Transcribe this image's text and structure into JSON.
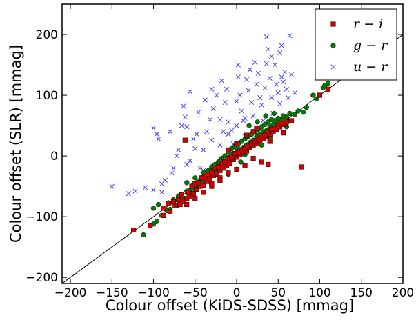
{
  "chart_data": {
    "type": "scatter",
    "title": "",
    "xlabel": "Colour offset (KiDS-SDSS)   [mmag]",
    "ylabel": "Colour offset (SLR)   [mmag]",
    "xlim": [
      -210,
      200
    ],
    "ylim": [
      -210,
      250
    ],
    "xticks": [
      "−200",
      "−150",
      "−100",
      "−50",
      "0",
      "50",
      "100",
      "150",
      "200"
    ],
    "yticks": [
      "−200",
      "−100",
      "0",
      "100",
      "200"
    ],
    "xtick_values": [
      -200,
      -150,
      -100,
      -50,
      0,
      50,
      100,
      150,
      200
    ],
    "ytick_values": [
      -200,
      -100,
      0,
      100,
      200
    ],
    "reference_line": {
      "label": "",
      "slope": 1,
      "intercept": 0
    },
    "legend": {
      "position": "top-right"
    },
    "grid": false,
    "series": [
      {
        "name": "r − i",
        "marker": "square",
        "color": "#d40000",
        "points": [
          [
            -124,
            -122
          ],
          [
            -104,
            -115
          ],
          [
            -88,
            -98
          ],
          [
            -80,
            -92
          ],
          [
            -74,
            -82
          ],
          [
            -68,
            -80
          ],
          [
            -64,
            -74
          ],
          [
            -60,
            -70
          ],
          [
            -56,
            -66
          ],
          [
            -52,
            -62
          ],
          [
            -48,
            -55
          ],
          [
            -44,
            -50
          ],
          [
            -40,
            -48
          ],
          [
            -36,
            -42
          ],
          [
            -32,
            -38
          ],
          [
            -28,
            -32
          ],
          [
            -24,
            -30
          ],
          [
            -20,
            -24
          ],
          [
            -16,
            -20
          ],
          [
            -12,
            -16
          ],
          [
            -8,
            -12
          ],
          [
            -4,
            -6
          ],
          [
            0,
            -2
          ],
          [
            4,
            2
          ],
          [
            8,
            6
          ],
          [
            12,
            8
          ],
          [
            16,
            14
          ],
          [
            20,
            18
          ],
          [
            24,
            20
          ],
          [
            28,
            26
          ],
          [
            32,
            28
          ],
          [
            36,
            32
          ],
          [
            40,
            36
          ],
          [
            44,
            40
          ],
          [
            48,
            44
          ],
          [
            52,
            48
          ],
          [
            58,
            52
          ],
          [
            64,
            58
          ],
          [
            -62,
            26
          ],
          [
            -88,
            -86
          ],
          [
            -82,
            -78
          ],
          [
            -76,
            -76
          ],
          [
            -70,
            -72
          ],
          [
            -66,
            -64
          ],
          [
            -58,
            -60
          ],
          [
            -54,
            -50
          ],
          [
            -50,
            -46
          ],
          [
            -46,
            -44
          ],
          [
            -42,
            -36
          ],
          [
            -38,
            -34
          ],
          [
            -34,
            -30
          ],
          [
            -30,
            -26
          ],
          [
            -26,
            -20
          ],
          [
            -22,
            -18
          ],
          [
            -18,
            -12
          ],
          [
            -14,
            -10
          ],
          [
            -10,
            -4
          ],
          [
            -6,
            -2
          ],
          [
            -2,
            4
          ],
          [
            2,
            6
          ],
          [
            6,
            10
          ],
          [
            10,
            12
          ],
          [
            14,
            16
          ],
          [
            18,
            20
          ],
          [
            22,
            24
          ],
          [
            26,
            28
          ],
          [
            30,
            32
          ],
          [
            34,
            34
          ],
          [
            38,
            40
          ],
          [
            42,
            44
          ],
          [
            46,
            46
          ],
          [
            50,
            50
          ],
          [
            54,
            54
          ],
          [
            60,
            56
          ],
          [
            30,
            -10
          ],
          [
            38,
            -14
          ],
          [
            -40,
            -60
          ],
          [
            -20,
            -36
          ],
          [
            0,
            -22
          ],
          [
            20,
            -4
          ],
          [
            10,
            -16
          ],
          [
            -30,
            -50
          ],
          [
            -10,
            -28
          ],
          [
            100,
            100
          ],
          [
            110,
            110
          ],
          [
            -60,
            -80
          ],
          [
            -50,
            -70
          ],
          [
            -30,
            -46
          ],
          [
            -20,
            -40
          ],
          [
            40,
            24
          ],
          [
            56,
            38
          ],
          [
            66,
            58
          ],
          [
            20,
            40
          ],
          [
            0,
            20
          ],
          [
            -10,
            10
          ],
          [
            24,
            46
          ],
          [
            12,
            34
          ],
          [
            78,
            -18
          ]
        ]
      },
      {
        "name": "g − r",
        "marker": "circle",
        "color": "#007a00",
        "points": [
          [
            -112,
            -130
          ],
          [
            -96,
            -108
          ],
          [
            -80,
            -88
          ],
          [
            -76,
            -72
          ],
          [
            -70,
            -66
          ],
          [
            -64,
            -70
          ],
          [
            -60,
            -58
          ],
          [
            -56,
            -56
          ],
          [
            -52,
            -48
          ],
          [
            -48,
            -50
          ],
          [
            -44,
            -40
          ],
          [
            -40,
            -42
          ],
          [
            -36,
            -34
          ],
          [
            -32,
            -30
          ],
          [
            -28,
            -22
          ],
          [
            -24,
            -26
          ],
          [
            -20,
            -16
          ],
          [
            -16,
            -12
          ],
          [
            -12,
            -8
          ],
          [
            -8,
            -2
          ],
          [
            -4,
            4
          ],
          [
            0,
            6
          ],
          [
            4,
            10
          ],
          [
            8,
            14
          ],
          [
            12,
            18
          ],
          [
            16,
            22
          ],
          [
            20,
            26
          ],
          [
            24,
            32
          ],
          [
            28,
            36
          ],
          [
            32,
            40
          ],
          [
            36,
            42
          ],
          [
            40,
            48
          ],
          [
            44,
            52
          ],
          [
            48,
            56
          ],
          [
            54,
            60
          ],
          [
            60,
            64
          ],
          [
            70,
            68
          ],
          [
            80,
            72
          ],
          [
            92,
            100
          ],
          [
            104,
            112
          ],
          [
            106,
            116
          ],
          [
            110,
            120
          ],
          [
            -100,
            -86
          ],
          [
            -94,
            -80
          ],
          [
            -84,
            -90
          ],
          [
            -72,
            -82
          ],
          [
            -66,
            -76
          ],
          [
            -58,
            -62
          ],
          [
            -50,
            -56
          ],
          [
            -46,
            -44
          ],
          [
            -42,
            -36
          ],
          [
            -38,
            -28
          ],
          [
            -34,
            -24
          ],
          [
            -30,
            -18
          ],
          [
            -26,
            -14
          ],
          [
            -22,
            -10
          ],
          [
            -18,
            -4
          ],
          [
            -14,
            0
          ],
          [
            -10,
            6
          ],
          [
            -6,
            12
          ],
          [
            -2,
            16
          ],
          [
            2,
            20
          ],
          [
            6,
            24
          ],
          [
            10,
            28
          ],
          [
            14,
            32
          ],
          [
            18,
            36
          ],
          [
            22,
            40
          ],
          [
            26,
            44
          ],
          [
            30,
            48
          ],
          [
            34,
            52
          ],
          [
            38,
            56
          ],
          [
            42,
            60
          ],
          [
            46,
            58
          ],
          [
            50,
            62
          ],
          [
            56,
            66
          ],
          [
            64,
            70
          ],
          [
            74,
            74
          ],
          [
            84,
            80
          ],
          [
            96,
            94
          ],
          [
            -40,
            -28
          ],
          [
            -20,
            -8
          ],
          [
            0,
            14
          ],
          [
            20,
            40
          ],
          [
            10,
            2
          ],
          [
            -30,
            -46
          ],
          [
            -10,
            -30
          ],
          [
            30,
            18
          ],
          [
            40,
            30
          ],
          [
            -50,
            -36
          ],
          [
            -60,
            -44
          ],
          [
            -20,
            -38
          ],
          [
            5,
            -10
          ],
          [
            15,
            50
          ],
          [
            25,
            56
          ],
          [
            35,
            66
          ],
          [
            45,
            70
          ],
          [
            60,
            48
          ],
          [
            -90,
            -98
          ],
          [
            -100,
            -112
          ]
        ]
      },
      {
        "name": "u − r",
        "marker": "x",
        "color": "#4040ff",
        "points": [
          [
            -150,
            -50
          ],
          [
            -130,
            -62
          ],
          [
            -122,
            -58
          ],
          [
            -100,
            46
          ],
          [
            -96,
            36
          ],
          [
            -94,
            28
          ],
          [
            -90,
            -46
          ],
          [
            -86,
            -40
          ],
          [
            -80,
            40
          ],
          [
            -78,
            -28
          ],
          [
            -76,
            -20
          ],
          [
            -72,
            0
          ],
          [
            -70,
            10
          ],
          [
            -66,
            50
          ],
          [
            -62,
            64
          ],
          [
            -60,
            48
          ],
          [
            -56,
            -8
          ],
          [
            -52,
            28
          ],
          [
            -48,
            36
          ],
          [
            -46,
            72
          ],
          [
            -44,
            -20
          ],
          [
            -40,
            10
          ],
          [
            -36,
            40
          ],
          [
            -32,
            60
          ],
          [
            -30,
            110
          ],
          [
            -28,
            78
          ],
          [
            -24,
            100
          ],
          [
            -20,
            60
          ],
          [
            -16,
            40
          ],
          [
            -14,
            88
          ],
          [
            -12,
            110
          ],
          [
            -10,
            56
          ],
          [
            -6,
            42
          ],
          [
            -4,
            20
          ],
          [
            0,
            90
          ],
          [
            2,
            150
          ],
          [
            4,
            100
          ],
          [
            6,
            74
          ],
          [
            8,
            58
          ],
          [
            10,
            32
          ],
          [
            12,
            126
          ],
          [
            14,
            108
          ],
          [
            16,
            142
          ],
          [
            18,
            88
          ],
          [
            20,
            66
          ],
          [
            22,
            40
          ],
          [
            24,
            118
          ],
          [
            26,
            136
          ],
          [
            28,
            96
          ],
          [
            30,
            84
          ],
          [
            32,
            58
          ],
          [
            34,
            112
          ],
          [
            36,
            152
          ],
          [
            38,
            176
          ],
          [
            40,
            128
          ],
          [
            42,
            96
          ],
          [
            44,
            70
          ],
          [
            46,
            150
          ],
          [
            48,
            118
          ],
          [
            50,
            104
          ],
          [
            52,
            86
          ],
          [
            54,
            130
          ],
          [
            56,
            122
          ],
          [
            58,
            138
          ],
          [
            60,
            110
          ],
          [
            62,
            96
          ],
          [
            64,
            198
          ],
          [
            66,
            134
          ],
          [
            70,
            104
          ],
          [
            -60,
            -14
          ],
          [
            -50,
            12
          ],
          [
            -40,
            -24
          ],
          [
            -30,
            26
          ],
          [
            -20,
            18
          ],
          [
            -10,
            36
          ],
          [
            0,
            50
          ],
          [
            10,
            62
          ],
          [
            20,
            24
          ],
          [
            30,
            40
          ],
          [
            40,
            30
          ],
          [
            -90,
            -60
          ],
          [
            -80,
            -76
          ],
          [
            -70,
            -78
          ],
          [
            -100,
            -56
          ],
          [
            -110,
            -52
          ],
          [
            -64,
            82
          ],
          [
            -56,
            106
          ],
          [
            -38,
            92
          ],
          [
            -18,
            124
          ],
          [
            2,
            130
          ],
          [
            22,
            154
          ],
          [
            42,
            164
          ],
          [
            52,
            170
          ],
          [
            36,
            196
          ],
          [
            54,
            182
          ],
          [
            -8,
            6
          ],
          [
            6,
            12
          ],
          [
            26,
            20
          ],
          [
            44,
            48
          ]
        ]
      }
    ]
  }
}
